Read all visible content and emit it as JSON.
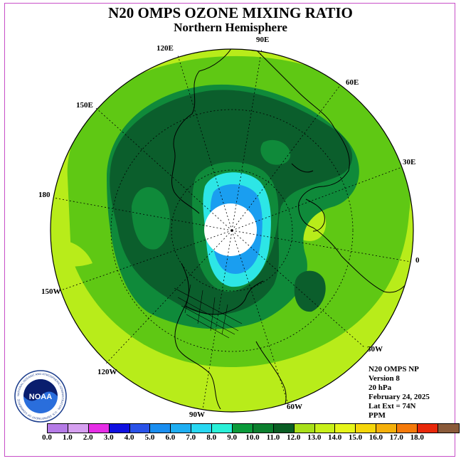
{
  "header": {
    "title": "N20 OMPS OZONE MIXING RATIO",
    "subtitle": "Northern Hemisphere"
  },
  "lon_labels": {
    "e90": "90E",
    "e120": "120E",
    "e60": "60E",
    "e150": "150E",
    "e30": "30E",
    "e180": "180",
    "zero": "0",
    "w150": "150W",
    "w30": "30W",
    "w120": "120W",
    "w60": "60W",
    "w90": "90W"
  },
  "info": {
    "product": "N20 OMPS NP",
    "version": "Version 8",
    "level": "20 hPa",
    "date": "February 24, 2025",
    "lat_ext": "Lat Ext = 74N",
    "units": "PPM"
  },
  "logo": {
    "text": "NOAA",
    "ring_text": "NATIONAL OCEANIC AND ATMOSPHERIC ADMINISTRATION · U.S. DEPARTMENT OF COMMERCE"
  },
  "colorbar": {
    "ticks": [
      "0.0",
      "1.0",
      "2.0",
      "3.0",
      "4.0",
      "5.0",
      "6.0",
      "7.0",
      "8.0",
      "9.0",
      "10.0",
      "11.0",
      "12.0",
      "13.0",
      "14.0",
      "15.0",
      "16.0",
      "17.0",
      "18.0"
    ],
    "colors": [
      "#b57be6",
      "#d6a0f0",
      "#e62ee6",
      "#1010e0",
      "#2a52e8",
      "#1a8ef0",
      "#1eaef2",
      "#28d8f2",
      "#2af0d8",
      "#0a9a3a",
      "#0b7f2e",
      "#0a5e24",
      "#a8e01a",
      "#c8f01a",
      "#e6f51a",
      "#f5d60a",
      "#f5b00a",
      "#f57a0a",
      "#e8280a",
      "#8a5a3a"
    ]
  },
  "map_colors": {
    "deep_green": "#0b5e2c",
    "mid_green": "#0f8a3a",
    "light_green": "#5fc814",
    "yellow_green": "#b8ec1a",
    "cyan": "#2de6e6",
    "blue": "#1a9ef0"
  }
}
